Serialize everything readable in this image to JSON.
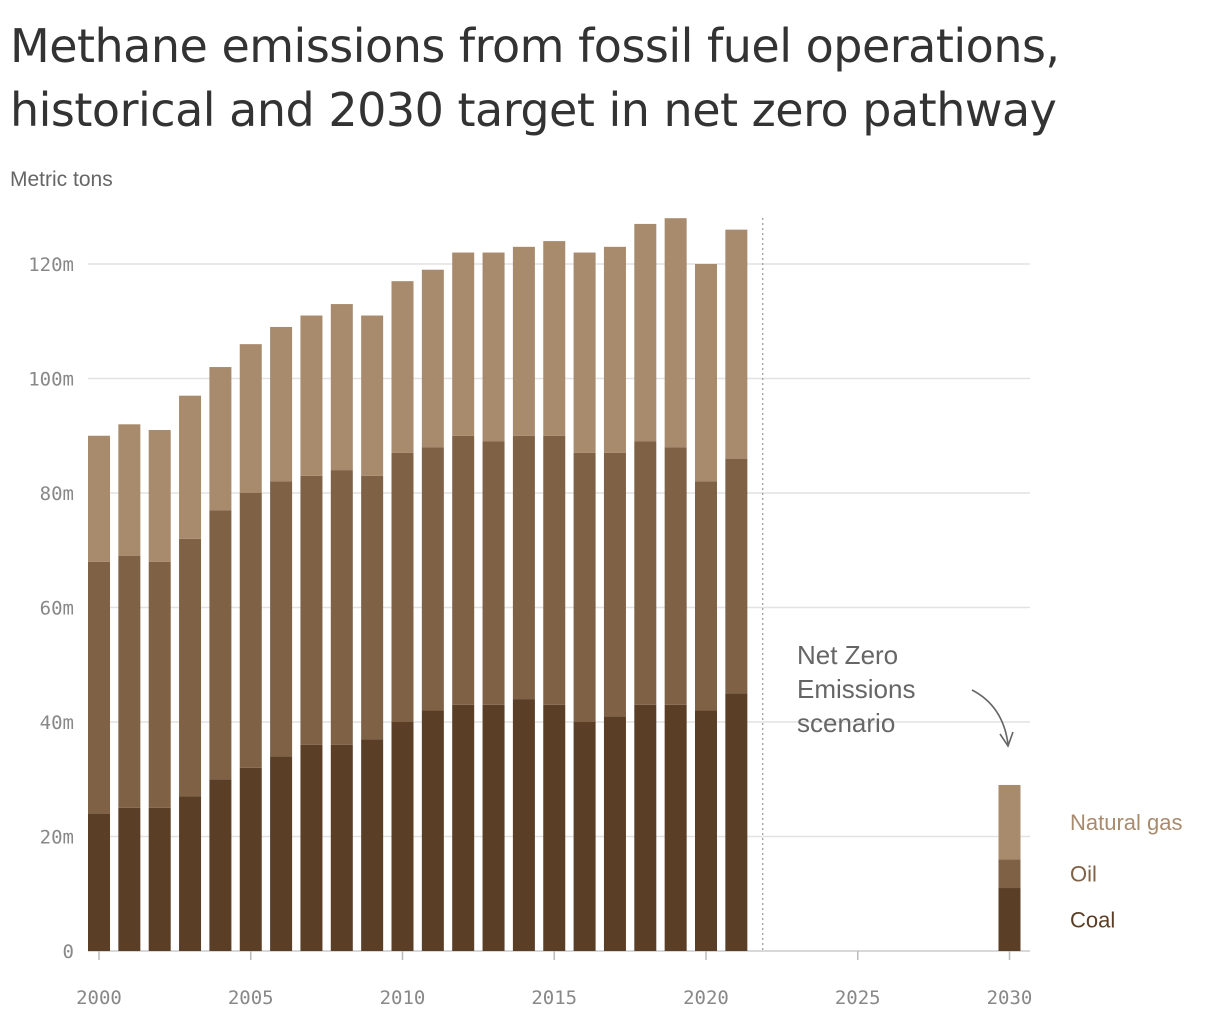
{
  "chart_data": {
    "type": "bar",
    "stacked": true,
    "title": "Methane emissions from fossil fuel operations, historical and 2030 target in net zero pathway",
    "ylabel": "Metric tons",
    "ylim": [
      0,
      128
    ],
    "yticks": [
      0,
      20,
      40,
      60,
      80,
      100,
      120
    ],
    "ytick_labels": [
      "0",
      "20m",
      "40m",
      "60m",
      "80m",
      "100m",
      "120m"
    ],
    "xlim": [
      1999.7,
      2030.6
    ],
    "xticks": [
      2000,
      2005,
      2010,
      2015,
      2020,
      2025,
      2030
    ],
    "xtick_labels": [
      "2000",
      "2005",
      "2010",
      "2015",
      "2020",
      "2025",
      "2030"
    ],
    "grid": true,
    "legend_position": "right",
    "x": [
      2000,
      2001,
      2002,
      2003,
      2004,
      2005,
      2006,
      2007,
      2008,
      2009,
      2010,
      2011,
      2012,
      2013,
      2014,
      2015,
      2016,
      2017,
      2018,
      2019,
      2020,
      2021,
      2030
    ],
    "series": [
      {
        "name": "Coal",
        "color": "#5a3e26",
        "values": [
          24,
          25,
          25,
          27,
          30,
          32,
          34,
          36,
          36,
          37,
          40,
          42,
          43,
          43,
          44,
          43,
          40,
          41,
          43,
          43,
          42,
          45,
          11
        ]
      },
      {
        "name": "Oil",
        "color": "#7f6145",
        "values": [
          44,
          44,
          43,
          45,
          47,
          48,
          48,
          47,
          48,
          46,
          47,
          46,
          47,
          46,
          46,
          47,
          47,
          46,
          46,
          45,
          40,
          41,
          5
        ]
      },
      {
        "name": "Natural gas",
        "color": "#a88a6c",
        "values": [
          22,
          23,
          23,
          25,
          25,
          26,
          27,
          28,
          29,
          28,
          30,
          31,
          32,
          33,
          33,
          34,
          35,
          36,
          38,
          40,
          38,
          40,
          13
        ]
      }
    ],
    "scenario_divider_x": 2022,
    "annotation": "Net Zero Emissions scenario",
    "annotation_lines": [
      "Net Zero",
      "Emissions",
      "scenario"
    ]
  }
}
